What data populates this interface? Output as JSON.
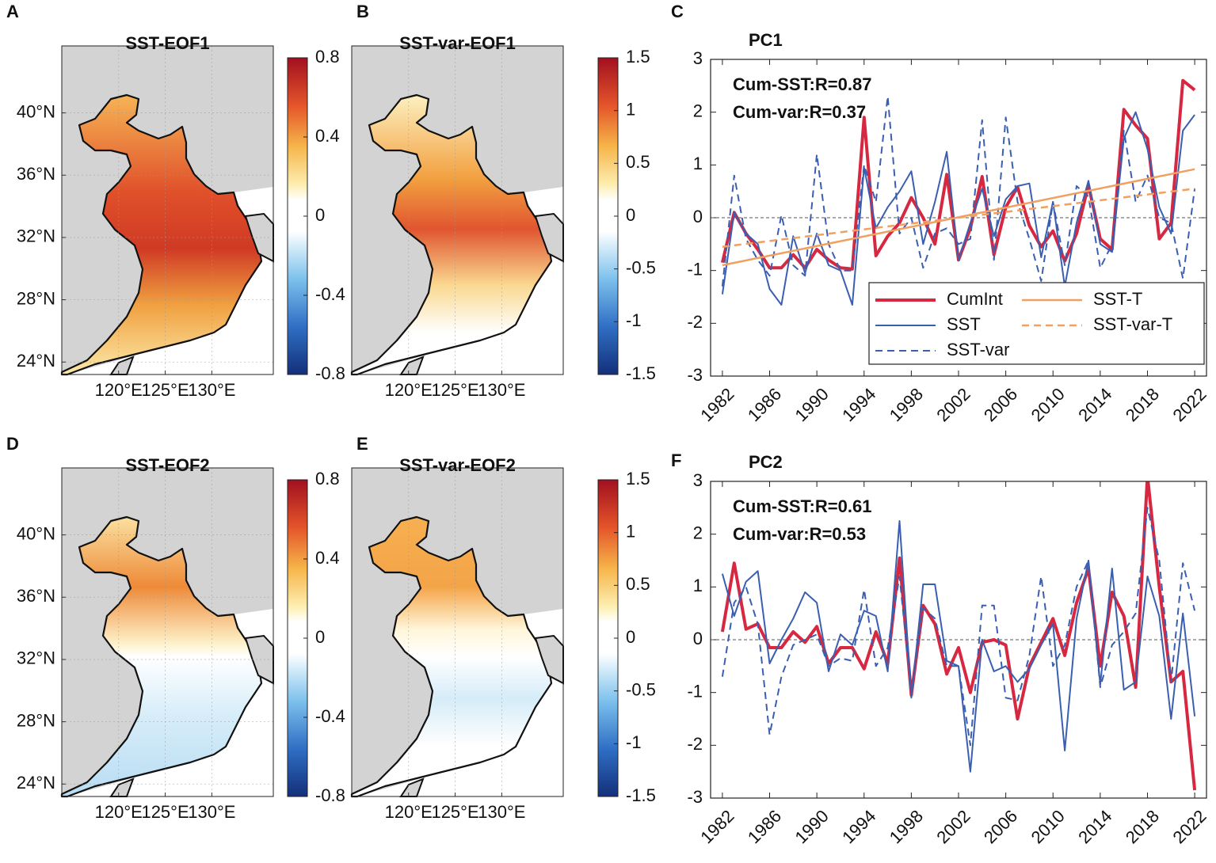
{
  "chart_data": [
    {
      "type": "map",
      "panel": "A",
      "title": "SST-EOF1",
      "grid": true,
      "xlim": [
        113.9,
        136.6
      ],
      "ylim": [
        23.2,
        44.3
      ],
      "xticks": [
        {
          "value": 120,
          "label": "120°E"
        },
        {
          "value": 125,
          "label": "125°E"
        },
        {
          "value": 130,
          "label": "130°E"
        }
      ],
      "yticks": [
        {
          "value": 24,
          "label": "24°N"
        },
        {
          "value": 28,
          "label": "28°N"
        },
        {
          "value": 32,
          "label": "32°N"
        },
        {
          "value": 36,
          "label": "36°N"
        },
        {
          "value": 40,
          "label": "40°N"
        }
      ],
      "colorbar": {
        "ylim": [
          -0.8,
          0.8
        ],
        "ticks": [
          -0.8,
          -0.4,
          0,
          0.4,
          0.8
        ]
      }
    },
    {
      "type": "map",
      "panel": "B",
      "title": "SST-var-EOF1",
      "grid": true,
      "xlim": [
        113.9,
        136.6
      ],
      "ylim": [
        23.2,
        44.3
      ],
      "xticks": [
        {
          "value": 120,
          "label": "120°E"
        },
        {
          "value": 125,
          "label": "125°E"
        },
        {
          "value": 130,
          "label": "130°E"
        }
      ],
      "yticks": [],
      "colorbar": {
        "ylim": [
          -1.5,
          1.5
        ],
        "ticks": [
          -1.5,
          -1,
          -0.5,
          0,
          0.5,
          1,
          1.5
        ]
      }
    },
    {
      "type": "map",
      "panel": "D",
      "title": "SST-EOF2",
      "grid": true,
      "xlim": [
        113.9,
        136.6
      ],
      "ylim": [
        23.2,
        44.3
      ],
      "xticks": [
        {
          "value": 120,
          "label": "120°E"
        },
        {
          "value": 125,
          "label": "125°E"
        },
        {
          "value": 130,
          "label": "130°E"
        }
      ],
      "yticks": [
        {
          "value": 24,
          "label": "24°N"
        },
        {
          "value": 28,
          "label": "28°N"
        },
        {
          "value": 32,
          "label": "32°N"
        },
        {
          "value": 36,
          "label": "36°N"
        },
        {
          "value": 40,
          "label": "40°N"
        }
      ],
      "colorbar": {
        "ylim": [
          -0.8,
          0.8
        ],
        "ticks": [
          -0.8,
          -0.4,
          0,
          0.4,
          0.8
        ]
      }
    },
    {
      "type": "map",
      "panel": "E",
      "title": "SST-var-EOF2",
      "grid": true,
      "xlim": [
        113.9,
        136.6
      ],
      "ylim": [
        23.2,
        44.3
      ],
      "xticks": [
        {
          "value": 120,
          "label": "120°E"
        },
        {
          "value": 125,
          "label": "125°E"
        },
        {
          "value": 130,
          "label": "130°E"
        }
      ],
      "yticks": [],
      "colorbar": {
        "ylim": [
          -1.5,
          1.5
        ],
        "ticks": [
          -1.5,
          -1,
          -0.5,
          0,
          0.5,
          1,
          1.5
        ]
      }
    },
    {
      "type": "line",
      "panel": "C",
      "title": "PC1",
      "zero_line": true,
      "legend": "lower right",
      "annotations": [
        "Cum-SST:R=0.87",
        "Cum-var:R=0.37"
      ],
      "x": [
        1982,
        1983,
        1984,
        1985,
        1986,
        1987,
        1988,
        1989,
        1990,
        1991,
        1992,
        1993,
        1994,
        1995,
        1996,
        1997,
        1998,
        1999,
        2000,
        2001,
        2002,
        2003,
        2004,
        2005,
        2006,
        2007,
        2008,
        2009,
        2010,
        2011,
        2012,
        2013,
        2014,
        2015,
        2016,
        2017,
        2018,
        2019,
        2020,
        2021,
        2022
      ],
      "xlim": [
        1981,
        2023
      ],
      "xticks": [
        1982,
        1986,
        1990,
        1994,
        1998,
        2002,
        2006,
        2010,
        2014,
        2018,
        2022
      ],
      "ylim": [
        -3,
        3
      ],
      "yticks": [
        -3,
        -2,
        -1,
        0,
        1,
        2,
        3
      ],
      "series": [
        {
          "name": "CumInt",
          "color": "#d62840",
          "linestyle": "solid",
          "width": 4,
          "values": [
            -0.85,
            0.1,
            -0.3,
            -0.6,
            -0.95,
            -0.95,
            -0.7,
            -0.95,
            -0.6,
            -0.8,
            -0.95,
            -0.97,
            1.9,
            -0.72,
            -0.35,
            -0.1,
            0.38,
            0.0,
            -0.5,
            0.82,
            -0.8,
            -0.2,
            0.78,
            -0.7,
            0.2,
            0.58,
            -0.15,
            -0.55,
            -0.25,
            -0.82,
            -0.3,
            0.62,
            -0.4,
            -0.6,
            2.05,
            1.75,
            1.5,
            -0.4,
            -0.1,
            2.6,
            2.42
          ]
        },
        {
          "name": "SST",
          "color": "#3a5fb0",
          "linestyle": "solid",
          "width": 2,
          "values": [
            -1.45,
            0.1,
            -0.3,
            -0.5,
            -1.35,
            -1.65,
            -0.35,
            -1.05,
            -0.3,
            -0.9,
            -1.0,
            -1.65,
            0.95,
            -0.2,
            0.2,
            0.5,
            0.88,
            -0.5,
            0.3,
            1.25,
            -0.8,
            -0.1,
            0.55,
            -0.35,
            0.35,
            0.6,
            0.65,
            -0.75,
            0.3,
            -1.3,
            -0.1,
            0.7,
            -0.5,
            -0.65,
            1.5,
            2.0,
            1.3,
            0.2,
            -0.3,
            1.65,
            1.95
          ]
        },
        {
          "name": "SST-var",
          "color": "#3a5fb0",
          "linestyle": "dashed",
          "width": 2,
          "values": [
            -1.3,
            0.8,
            -0.4,
            -0.8,
            -1.1,
            0.05,
            -0.9,
            -1.1,
            1.2,
            -0.5,
            -1.0,
            -1.0,
            1.0,
            0.3,
            2.3,
            -0.3,
            0.0,
            -0.95,
            -0.3,
            -0.2,
            -0.5,
            -0.4,
            1.85,
            -0.8,
            1.9,
            0.3,
            -0.4,
            -1.2,
            0.3,
            -0.9,
            0.6,
            0.4,
            -0.95,
            -0.5,
            1.65,
            0.3,
            0.8,
            0.0,
            -0.1,
            -1.15,
            0.55
          ]
        },
        {
          "name": "SST-T",
          "color": "#f0a060",
          "linestyle": "solid",
          "width": 2.5,
          "x": [
            1982,
            2022
          ],
          "values": [
            -0.9,
            0.92
          ]
        },
        {
          "name": "SST-var-T",
          "color": "#f0a060",
          "linestyle": "dashed",
          "width": 2.5,
          "x": [
            1982,
            2022
          ],
          "values": [
            -0.55,
            0.55
          ]
        }
      ]
    },
    {
      "type": "line",
      "panel": "F",
      "title": "PC2",
      "zero_line": true,
      "annotations": [
        "Cum-SST:R=0.61",
        "Cum-var:R=0.53"
      ],
      "x": [
        1982,
        1983,
        1984,
        1985,
        1986,
        1987,
        1988,
        1989,
        1990,
        1991,
        1992,
        1993,
        1994,
        1995,
        1996,
        1997,
        1998,
        1999,
        2000,
        2001,
        2002,
        2003,
        2004,
        2005,
        2006,
        2007,
        2008,
        2009,
        2010,
        2011,
        2012,
        2013,
        2014,
        2015,
        2016,
        2017,
        2018,
        2019,
        2020,
        2021,
        2022
      ],
      "xlim": [
        1981,
        2023
      ],
      "xticks": [
        1982,
        1986,
        1990,
        1994,
        1998,
        2002,
        2006,
        2010,
        2014,
        2018,
        2022
      ],
      "ylim": [
        -3,
        3
      ],
      "yticks": [
        -3,
        -2,
        -1,
        0,
        1,
        2,
        3
      ],
      "series": [
        {
          "color": "#d62840",
          "linestyle": "solid",
          "width": 4,
          "values": [
            0.15,
            1.45,
            0.2,
            0.3,
            -0.15,
            -0.15,
            0.15,
            -0.05,
            0.25,
            -0.45,
            -0.15,
            -0.15,
            -0.55,
            0.15,
            -0.45,
            1.55,
            -1.05,
            0.65,
            0.3,
            -0.65,
            -0.15,
            -1.0,
            -0.05,
            0.0,
            -0.1,
            -1.5,
            -0.5,
            -0.05,
            0.4,
            -0.3,
            0.7,
            1.35,
            -0.5,
            0.9,
            0.45,
            -0.9,
            3.1,
            1.0,
            -0.8,
            -0.6,
            -2.85
          ]
        },
        {
          "color": "#3a5fb0",
          "linestyle": "solid",
          "width": 2,
          "values": [
            1.25,
            0.45,
            1.1,
            1.3,
            -0.45,
            0.0,
            0.4,
            0.9,
            0.7,
            -0.6,
            0.1,
            -0.1,
            0.55,
            0.45,
            -0.6,
            2.25,
            -1.1,
            1.05,
            1.05,
            -0.4,
            -0.5,
            -2.5,
            0.0,
            -0.6,
            -0.5,
            -0.8,
            -0.55,
            -0.1,
            0.3,
            -2.1,
            0.4,
            1.5,
            -0.85,
            1.35,
            -0.95,
            -0.8,
            1.2,
            0.45,
            -1.5,
            0.5,
            -1.45
          ]
        },
        {
          "color": "#3a5fb0",
          "linestyle": "dashed",
          "width": 2,
          "values": [
            -0.7,
            0.7,
            1.0,
            0.3,
            -1.8,
            -0.7,
            -0.1,
            0.0,
            0.1,
            -0.5,
            -0.35,
            -0.4,
            0.95,
            -0.5,
            -0.15,
            1.2,
            -1.0,
            0.6,
            0.4,
            -0.5,
            -0.5,
            -2.0,
            0.65,
            0.65,
            -1.1,
            -1.15,
            -0.3,
            1.2,
            -0.5,
            -0.1,
            1.0,
            1.5,
            -0.9,
            -0.1,
            0.15,
            0.5,
            2.5,
            1.5,
            -0.8,
            1.45,
            0.55
          ]
        }
      ]
    }
  ]
}
